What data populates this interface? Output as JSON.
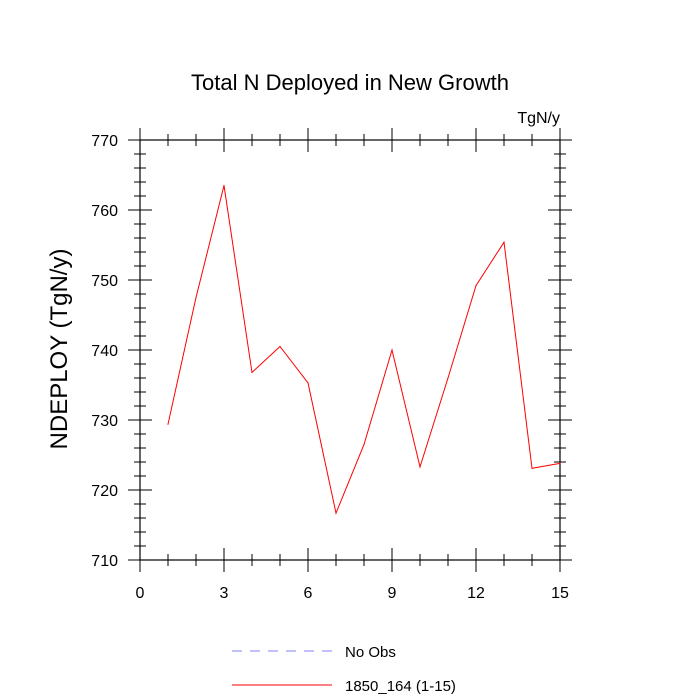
{
  "chart_data": {
    "type": "line",
    "title": "Total N Deployed in New Growth",
    "units_label": "TgN/y",
    "ylabel": "NDEPLOY  (TgN/y)",
    "xlabel": "",
    "xlim": [
      0,
      15
    ],
    "ylim": [
      710,
      770
    ],
    "x_ticks": [
      0,
      3,
      6,
      9,
      12,
      15
    ],
    "y_ticks": [
      710,
      720,
      730,
      740,
      750,
      760,
      770
    ],
    "grid": false,
    "series": [
      {
        "name": "1850_164 (1-15)",
        "color": "#ff0000",
        "x": [
          1,
          2,
          3,
          4,
          5,
          6,
          7,
          8,
          9,
          10,
          11,
          12,
          13,
          14,
          15
        ],
        "values": [
          729.4,
          747.5,
          763.5,
          736.8,
          740.5,
          735.3,
          716.7,
          726.5,
          740.0,
          723.3,
          736.0,
          749.2,
          755.4,
          723.1,
          723.8
        ]
      }
    ],
    "legend": [
      {
        "label": "No Obs",
        "color": "#8080ff",
        "style": "dashed"
      },
      {
        "label": "1850_164 (1-15)",
        "color": "#ff0000",
        "style": "solid"
      }
    ]
  }
}
